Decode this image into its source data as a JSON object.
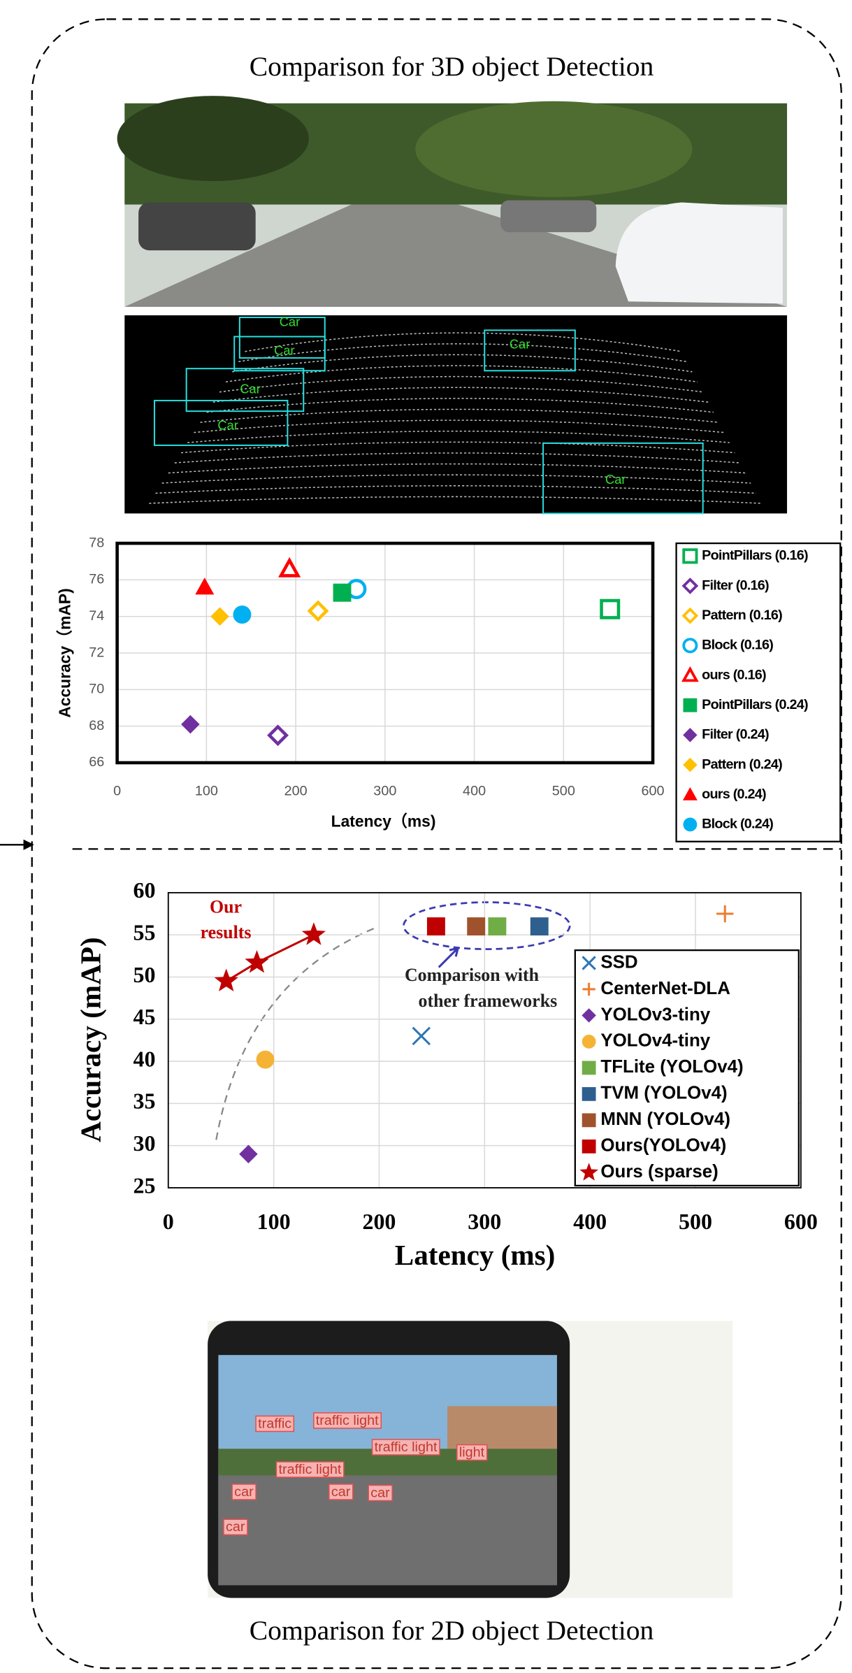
{
  "captions": {
    "top": "Comparison for 3D object Detection",
    "bottom": "Comparison for 2D object Detection"
  },
  "images": {
    "lidar_labels": [
      "Car",
      "Car",
      "Car",
      "Car",
      "Car",
      "Car"
    ],
    "phone_labels": [
      "traffic",
      "traffic light",
      "traffic light",
      "light",
      "traffic light",
      "car",
      "car",
      "car",
      "car"
    ]
  },
  "chart_data": [
    {
      "type": "scatter",
      "x_label": "Latency（ms)",
      "y_label": "Accuracy（mAP)",
      "xlim": [
        0,
        600
      ],
      "ylim": [
        66,
        78
      ],
      "xticks": [
        0,
        100,
        200,
        300,
        400,
        500,
        600
      ],
      "yticks": [
        66,
        68,
        70,
        72,
        74,
        76,
        78
      ],
      "grid": true,
      "legend": "right",
      "series": [
        {
          "name": "PointPillars (0.16)",
          "color": "#00b050",
          "marker": "square",
          "filled": false,
          "x": [
            552
          ],
          "values": [
            74.4
          ]
        },
        {
          "name": "Filter (0.16)",
          "color": "#7030a0",
          "marker": "diamond",
          "filled": false,
          "x": [
            180
          ],
          "values": [
            67.5
          ]
        },
        {
          "name": "Pattern (0.16)",
          "color": "#ffc000",
          "marker": "diamond",
          "filled": false,
          "x": [
            225
          ],
          "values": [
            74.3
          ]
        },
        {
          "name": "Block (0.16)",
          "color": "#00b0f0",
          "marker": "circle",
          "filled": false,
          "x": [
            268
          ],
          "values": [
            75.5
          ]
        },
        {
          "name": "ours (0.16)",
          "color": "#ff0000",
          "marker": "triangle",
          "filled": false,
          "x": [
            193
          ],
          "values": [
            76.6
          ]
        },
        {
          "name": "PointPillars (0.24)",
          "color": "#00b050",
          "marker": "square",
          "filled": true,
          "x": [
            252
          ],
          "values": [
            75.3
          ]
        },
        {
          "name": "Filter (0.24)",
          "color": "#7030a0",
          "marker": "diamond",
          "filled": true,
          "x": [
            82
          ],
          "values": [
            68.1
          ]
        },
        {
          "name": "Pattern (0.24)",
          "color": "#ffc000",
          "marker": "diamond",
          "filled": true,
          "x": [
            115
          ],
          "values": [
            74.0
          ]
        },
        {
          "name": "ours (0.24)",
          "color": "#ff0000",
          "marker": "triangle",
          "filled": true,
          "x": [
            98
          ],
          "values": [
            75.6
          ]
        },
        {
          "name": "Block (0.24)",
          "color": "#00b0f0",
          "marker": "circle",
          "filled": true,
          "x": [
            140
          ],
          "values": [
            74.1
          ]
        }
      ]
    },
    {
      "type": "scatter",
      "x_label": "Latency (ms)",
      "y_label": "Accuracy (mAP)",
      "xlim": [
        0,
        600
      ],
      "ylim": [
        25,
        60
      ],
      "xticks": [
        0,
        100,
        200,
        300,
        400,
        500,
        600
      ],
      "yticks": [
        25,
        30,
        35,
        40,
        45,
        50,
        55,
        60
      ],
      "grid": true,
      "legend": "lower right",
      "annotations": [
        "Our",
        "results",
        "Comparison with",
        "other frameworks"
      ],
      "series": [
        {
          "name": "SSD",
          "color": "#2e75b6",
          "marker": "x",
          "filled": true,
          "x": [
            240
          ],
          "values": [
            43
          ]
        },
        {
          "name": "CenterNet-DLA",
          "color": "#ed7d31",
          "marker": "plus",
          "filled": true,
          "x": [
            528
          ],
          "values": [
            57.5
          ]
        },
        {
          "name": "YOLOv3-tiny",
          "color": "#7030a0",
          "marker": "diamond",
          "filled": true,
          "x": [
            76
          ],
          "values": [
            29
          ]
        },
        {
          "name": "YOLOv4-tiny",
          "color": "#f5b335",
          "marker": "circle",
          "filled": true,
          "x": [
            92
          ],
          "values": [
            40.2
          ]
        },
        {
          "name": "TFLite (YOLOv4)",
          "color": "#70ad47",
          "marker": "square",
          "filled": true,
          "x": [
            312
          ],
          "values": [
            56
          ]
        },
        {
          "name": "TVM (YOLOv4)",
          "color": "#2f5f8f",
          "marker": "square",
          "filled": true,
          "x": [
            352
          ],
          "values": [
            56
          ]
        },
        {
          "name": "MNN (YOLOv4)",
          "color": "#a0522d",
          "marker": "square",
          "filled": true,
          "x": [
            292
          ],
          "values": [
            56
          ]
        },
        {
          "name": "Ours(YOLOv4)",
          "color": "#c00000",
          "marker": "square",
          "filled": true,
          "x": [
            254
          ],
          "values": [
            56
          ]
        },
        {
          "name": "Ours (sparse)",
          "color": "#c00000",
          "marker": "star",
          "filled": true,
          "line": true,
          "x": [
            55,
            84,
            138
          ],
          "values": [
            49.5,
            51.7,
            55
          ]
        }
      ]
    }
  ]
}
